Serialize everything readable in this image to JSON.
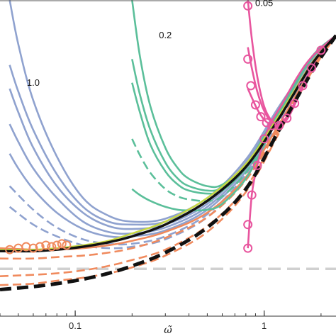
{
  "chart_data": {
    "type": "line",
    "title": "",
    "xlabel": "ω̃",
    "ylabel": "",
    "xscale": "log",
    "xlim": [
      0.04,
      2.4
    ],
    "ylim": [
      -0.5,
      10.2
    ],
    "grid": false,
    "xticks": [
      {
        "value": 0.1,
        "label": "0.1"
      },
      {
        "value": 1,
        "label": "1"
      }
    ],
    "annotations": [
      {
        "text": "1.0",
        "x": 0.06,
        "y": 7.3
      },
      {
        "text": "0.2",
        "x": 0.3,
        "y": 8.9
      },
      {
        "text": "0.05",
        "x": 1.0,
        "y": 10.0
      }
    ],
    "reference_lines": [
      {
        "y": 1.1,
        "color": "#d0d0d0",
        "style": "dashed"
      }
    ],
    "series": [
      {
        "color": "#8fa2cf",
        "style": "solid",
        "x": [
          0.045,
          0.05,
          0.06,
          0.08,
          0.11,
          0.15,
          0.2,
          0.3,
          0.5,
          0.8,
          1.2,
          1.8,
          2.4
        ],
        "y": [
          10.2,
          8.7,
          6.8,
          4.9,
          3.5,
          2.9,
          2.7,
          2.8,
          3.5,
          4.8,
          6.6,
          8.2,
          9.0
        ]
      },
      {
        "color": "#8fa2cf",
        "style": "solid",
        "x": [
          0.045,
          0.05,
          0.06,
          0.08,
          0.11,
          0.15,
          0.2,
          0.3,
          0.5,
          0.8,
          1.2,
          1.8,
          2.4
        ],
        "y": [
          8.0,
          7.1,
          5.8,
          4.3,
          3.2,
          2.7,
          2.6,
          2.7,
          3.4,
          4.7,
          6.5,
          8.2,
          9.0
        ]
      },
      {
        "color": "#8fa2cf",
        "style": "solid",
        "x": [
          0.045,
          0.05,
          0.06,
          0.08,
          0.11,
          0.15,
          0.2,
          0.3,
          0.5,
          0.8,
          1.2,
          1.8,
          2.4
        ],
        "y": [
          7.2,
          6.4,
          5.2,
          3.9,
          3.0,
          2.55,
          2.45,
          2.6,
          3.3,
          4.6,
          6.4,
          8.1,
          9.0
        ]
      },
      {
        "color": "#8fa2cf",
        "style": "solid",
        "x": [
          0.045,
          0.05,
          0.06,
          0.08,
          0.11,
          0.15,
          0.2,
          0.3,
          0.5,
          0.8,
          1.2,
          1.8,
          2.4
        ],
        "y": [
          6.0,
          5.4,
          4.5,
          3.5,
          2.7,
          2.35,
          2.3,
          2.5,
          3.2,
          4.5,
          6.3,
          8.1,
          9.0
        ]
      },
      {
        "color": "#8fa2cf",
        "style": "solid",
        "x": [
          0.045,
          0.05,
          0.06,
          0.08,
          0.11,
          0.15,
          0.2,
          0.3,
          0.5,
          0.8,
          1.2,
          1.8,
          2.4
        ],
        "y": [
          5.0,
          4.5,
          3.8,
          3.0,
          2.45,
          2.2,
          2.2,
          2.4,
          3.1,
          4.4,
          6.2,
          8.0,
          9.0
        ]
      },
      {
        "color": "#8fa2cf",
        "style": "dashed",
        "x": [
          0.045,
          0.06,
          0.08,
          0.11,
          0.15,
          0.2,
          0.3,
          0.5,
          0.8,
          1.2,
          1.8,
          2.4
        ],
        "y": [
          3.9,
          3.1,
          2.5,
          2.1,
          1.95,
          1.95,
          2.2,
          2.95,
          4.3,
          6.1,
          8.0,
          9.0
        ]
      },
      {
        "color": "#8fa2cf",
        "style": "dashed",
        "x": [
          0.045,
          0.06,
          0.08,
          0.11,
          0.15,
          0.2,
          0.3,
          0.5,
          0.8,
          1.2,
          1.8,
          2.4
        ],
        "y": [
          3.2,
          2.6,
          2.2,
          1.9,
          1.8,
          1.85,
          2.1,
          2.85,
          4.2,
          6.0,
          7.9,
          9.0
        ]
      },
      {
        "color": "#f08a5d",
        "style": "solid",
        "x": [
          0.04,
          0.06,
          0.08,
          0.11,
          0.15,
          0.2,
          0.3,
          0.5,
          0.8,
          1.2,
          1.8,
          2.4
        ],
        "y": [
          1.8,
          1.75,
          1.75,
          1.8,
          1.9,
          2.05,
          2.35,
          3.0,
          4.2,
          6.0,
          7.9,
          9.0
        ]
      },
      {
        "color": "#f08a5d",
        "style": "dashed",
        "x": [
          0.04,
          0.06,
          0.08,
          0.11,
          0.15,
          0.2,
          0.3,
          0.5,
          0.8,
          1.2,
          1.8,
          2.4
        ],
        "y": [
          1.45,
          1.45,
          1.5,
          1.55,
          1.65,
          1.8,
          2.15,
          2.85,
          4.1,
          5.9,
          7.9,
          9.0
        ]
      },
      {
        "color": "#f08a5d",
        "style": "dashed",
        "x": [
          0.04,
          0.06,
          0.08,
          0.11,
          0.15,
          0.2,
          0.3,
          0.5,
          0.8,
          1.2,
          1.8,
          2.4
        ],
        "y": [
          0.85,
          0.9,
          0.95,
          1.05,
          1.2,
          1.4,
          1.75,
          2.55,
          3.85,
          5.8,
          7.8,
          9.0
        ]
      },
      {
        "color": "#f08a5d",
        "style": "dashed",
        "x": [
          0.04,
          0.06,
          0.08,
          0.11,
          0.15,
          0.2,
          0.3,
          0.5,
          0.8,
          1.2,
          1.8,
          2.4
        ],
        "y": [
          0.55,
          0.6,
          0.7,
          0.8,
          0.95,
          1.15,
          1.55,
          2.35,
          3.7,
          5.7,
          7.8,
          9.0
        ]
      },
      {
        "color": "#f08a5d",
        "style": "circle-markers",
        "x": [
          0.045,
          0.05,
          0.055,
          0.06,
          0.065,
          0.07,
          0.075,
          0.08,
          0.085,
          0.09
        ],
        "y": [
          1.75,
          1.8,
          1.85,
          1.8,
          1.85,
          1.9,
          1.85,
          1.9,
          1.95,
          1.9
        ]
      },
      {
        "color": "#5bbf9a",
        "style": "solid",
        "x": [
          0.2,
          0.22,
          0.25,
          0.3,
          0.35,
          0.4,
          0.5,
          0.6,
          0.8,
          1.0,
          1.3,
          1.8,
          2.4
        ],
        "y": [
          10.2,
          8.3,
          6.6,
          5.2,
          4.5,
          4.15,
          3.9,
          3.95,
          4.6,
          5.6,
          6.9,
          8.3,
          9.0
        ]
      },
      {
        "color": "#5bbf9a",
        "style": "solid",
        "x": [
          0.2,
          0.22,
          0.25,
          0.3,
          0.35,
          0.4,
          0.5,
          0.6,
          0.8,
          1.0,
          1.3,
          1.8,
          2.4
        ],
        "y": [
          8.2,
          7.0,
          5.8,
          4.7,
          4.15,
          3.9,
          3.75,
          3.85,
          4.55,
          5.55,
          6.9,
          8.3,
          9.0
        ]
      },
      {
        "color": "#5bbf9a",
        "style": "solid",
        "x": [
          0.2,
          0.22,
          0.25,
          0.3,
          0.35,
          0.4,
          0.5,
          0.6,
          0.8,
          1.0,
          1.3,
          1.8,
          2.4
        ],
        "y": [
          7.4,
          6.4,
          5.3,
          4.4,
          3.95,
          3.75,
          3.65,
          3.75,
          4.5,
          5.5,
          6.85,
          8.3,
          9.0
        ]
      },
      {
        "color": "#5bbf9a",
        "style": "dashed",
        "x": [
          0.2,
          0.22,
          0.25,
          0.3,
          0.35,
          0.4,
          0.5,
          0.6,
          0.8,
          1.0,
          1.3,
          1.8,
          2.4
        ],
        "y": [
          5.5,
          4.95,
          4.35,
          3.8,
          3.55,
          3.45,
          3.4,
          3.55,
          4.35,
          5.4,
          6.8,
          8.25,
          9.0
        ]
      },
      {
        "color": "#5bbf9a",
        "style": "solid",
        "x": [
          0.2,
          0.22,
          0.25,
          0.3,
          0.35,
          0.4,
          0.5,
          0.6,
          0.8,
          1.0,
          1.3,
          1.8,
          2.4
        ],
        "y": [
          3.8,
          3.6,
          3.4,
          3.2,
          3.1,
          3.08,
          3.1,
          3.3,
          4.15,
          5.3,
          6.75,
          8.25,
          9.0
        ]
      },
      {
        "color": "#e8559e",
        "style": "solid",
        "x": [
          0.82,
          0.86,
          0.92,
          1.0,
          1.1,
          1.2,
          1.35,
          1.6,
          2.0,
          2.4
        ],
        "y": [
          10.2,
          8.9,
          7.6,
          6.6,
          6.1,
          6.0,
          6.35,
          7.3,
          8.5,
          9.0
        ]
      },
      {
        "color": "#e8559e",
        "style": "solid",
        "x": [
          0.82,
          0.86,
          0.92,
          1.0,
          1.1,
          1.2,
          1.35,
          1.6,
          2.0,
          2.4
        ],
        "y": [
          8.6,
          7.9,
          7.1,
          6.45,
          6.05,
          5.95,
          6.3,
          7.3,
          8.5,
          9.0
        ]
      },
      {
        "color": "#e8559e",
        "style": "solid",
        "x": [
          0.82,
          0.86,
          0.92,
          1.0,
          1.1,
          1.2,
          1.35,
          1.6,
          2.0,
          2.4
        ],
        "y": [
          7.2,
          6.9,
          6.5,
          6.15,
          5.95,
          5.9,
          6.25,
          7.25,
          8.5,
          9.0
        ]
      },
      {
        "color": "#e8559e",
        "style": "circle-markers",
        "x": [
          0.82,
          0.82,
          0.85,
          0.9,
          0.96,
          1.03,
          1.1,
          1.2,
          1.32,
          1.45,
          1.6,
          1.78,
          2.0
        ],
        "y": [
          10.0,
          8.2,
          7.3,
          6.65,
          6.25,
          6.05,
          5.95,
          5.95,
          6.2,
          6.7,
          7.3,
          7.9,
          8.5
        ]
      },
      {
        "color": "#e8559e",
        "style": "circle-markers",
        "x": [
          0.82,
          0.82,
          0.86,
          0.92,
          1.0
        ],
        "y": [
          1.8,
          2.6,
          3.6,
          4.6,
          5.5
        ]
      },
      {
        "color": "#e8559e",
        "style": "solid",
        "x": [
          0.82,
          0.86,
          0.92,
          1.0,
          1.1,
          1.25,
          1.5,
          1.8,
          2.4
        ],
        "y": [
          1.8,
          3.6,
          4.6,
          5.5,
          6.1,
          6.7,
          7.6,
          8.3,
          9.0
        ]
      },
      {
        "color": "#c8d840",
        "style": "solid",
        "x": [
          0.04,
          0.06,
          0.08,
          0.11,
          0.15,
          0.2,
          0.3,
          0.5,
          0.8,
          1.2,
          1.8,
          2.4
        ],
        "y": [
          1.75,
          1.75,
          1.8,
          1.9,
          2.05,
          2.3,
          2.7,
          3.5,
          4.65,
          6.3,
          8.1,
          9.0
        ]
      },
      {
        "color": "#111111",
        "style": "solid",
        "x": [
          0.04,
          0.06,
          0.08,
          0.11,
          0.15,
          0.2,
          0.3,
          0.5,
          0.8,
          1.2,
          1.8,
          2.4
        ],
        "y": [
          1.7,
          1.7,
          1.75,
          1.85,
          2.0,
          2.2,
          2.6,
          3.4,
          4.55,
          6.2,
          8.05,
          9.0
        ]
      },
      {
        "color": "#111111",
        "style": "heavy-dashed",
        "x": [
          0.04,
          0.06,
          0.08,
          0.11,
          0.15,
          0.2,
          0.3,
          0.5,
          0.8,
          1.2,
          1.8,
          2.4
        ],
        "y": [
          0.4,
          0.5,
          0.6,
          0.75,
          0.95,
          1.2,
          1.65,
          2.5,
          3.8,
          5.8,
          7.8,
          9.0
        ]
      }
    ]
  }
}
